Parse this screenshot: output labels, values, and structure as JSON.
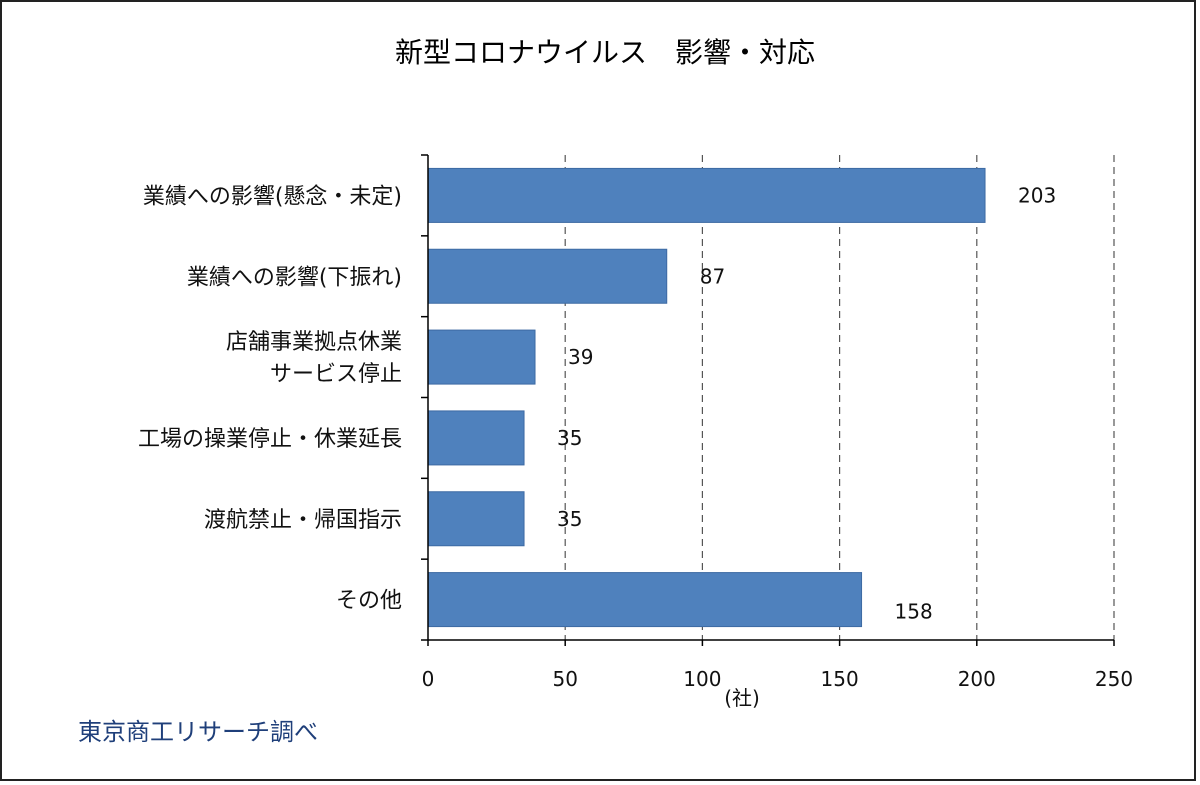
{
  "chart_data": {
    "type": "bar",
    "orientation": "horizontal",
    "title": "新型コロナウイルス　影響・対応",
    "categories": [
      [
        "業績への影響(懸念・未定)"
      ],
      [
        "業績への影響(下振れ)"
      ],
      [
        "店舗事業拠点休業",
        "サービス停止"
      ],
      [
        "工場の操業停止・休業延長"
      ],
      [
        "渡航禁止・帰国指示"
      ],
      [
        "その他"
      ]
    ],
    "values": [
      203,
      87,
      39,
      35,
      35,
      158
    ],
    "xlim": [
      0,
      250
    ],
    "xticks": [
      0,
      50,
      100,
      150,
      200,
      250
    ],
    "xunit": "(社)",
    "grid": "vertical-dashed",
    "bar_color": "#4f81bd"
  },
  "source": "東京商工リサーチ調べ"
}
